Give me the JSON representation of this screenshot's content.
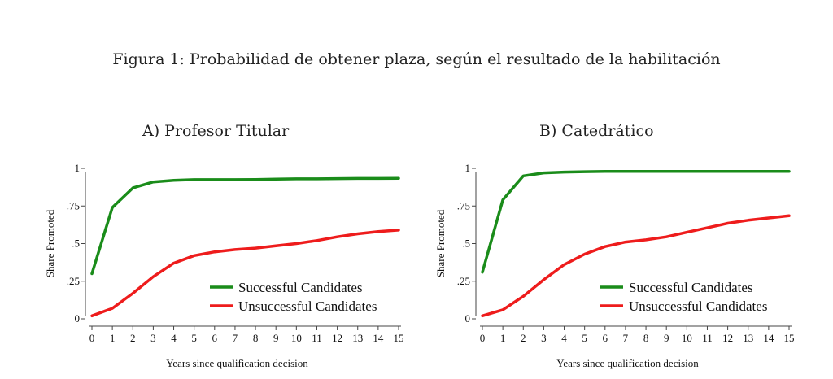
{
  "figure_title": "Figura 1: Probabilidad de obtener plaza, según el resultado de la habilitación",
  "colors": {
    "successful": "#1a8c1a",
    "unsuccessful": "#ee1c1c",
    "axis": "#444444"
  },
  "chart_data": [
    {
      "type": "line",
      "title": "A) Profesor Titular",
      "xlabel": "Years since qualification decision",
      "ylabel": "Share Promoted",
      "x": [
        0,
        1,
        2,
        3,
        4,
        5,
        6,
        7,
        8,
        9,
        10,
        11,
        12,
        13,
        14,
        15
      ],
      "xlim": [
        0,
        15
      ],
      "ylim": [
        0,
        1
      ],
      "yticks": [
        0,
        0.25,
        0.5,
        0.75,
        1
      ],
      "yticklabels": [
        "0",
        ".25",
        ".5",
        ".75",
        "1"
      ],
      "grid": false,
      "legend_position": "bottom-right",
      "series": [
        {
          "name": "Successful Candidates",
          "color": "#1a8c1a",
          "values": [
            0.3,
            0.74,
            0.87,
            0.91,
            0.92,
            0.925,
            0.925,
            0.925,
            0.926,
            0.928,
            0.93,
            0.93,
            0.932,
            0.933,
            0.933,
            0.934
          ]
        },
        {
          "name": "Unsuccessful Candidates",
          "color": "#ee1c1c",
          "values": [
            0.02,
            0.07,
            0.17,
            0.28,
            0.37,
            0.42,
            0.445,
            0.46,
            0.47,
            0.485,
            0.5,
            0.52,
            0.545,
            0.565,
            0.58,
            0.59
          ]
        }
      ]
    },
    {
      "type": "line",
      "title": "B) Catedrático",
      "xlabel": "Years since qualification decision",
      "ylabel": "Share Promoted",
      "x": [
        0,
        1,
        2,
        3,
        4,
        5,
        6,
        7,
        8,
        9,
        10,
        11,
        12,
        13,
        14,
        15
      ],
      "xlim": [
        0,
        15
      ],
      "ylim": [
        0,
        1
      ],
      "yticks": [
        0,
        0.25,
        0.5,
        0.75,
        1
      ],
      "yticklabels": [
        "0",
        ".25",
        ".5",
        ".75",
        "1"
      ],
      "grid": false,
      "legend_position": "bottom-right",
      "series": [
        {
          "name": "Successful Candidates",
          "color": "#1a8c1a",
          "values": [
            0.31,
            0.79,
            0.95,
            0.97,
            0.975,
            0.978,
            0.98,
            0.98,
            0.98,
            0.98,
            0.98,
            0.98,
            0.98,
            0.98,
            0.98,
            0.98
          ]
        },
        {
          "name": "Unsuccessful Candidates",
          "color": "#ee1c1c",
          "values": [
            0.02,
            0.06,
            0.15,
            0.26,
            0.36,
            0.43,
            0.48,
            0.51,
            0.525,
            0.545,
            0.575,
            0.605,
            0.635,
            0.655,
            0.67,
            0.685
          ]
        }
      ]
    }
  ]
}
